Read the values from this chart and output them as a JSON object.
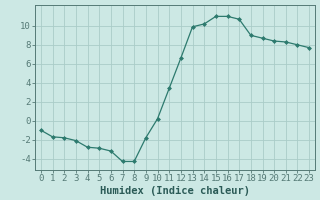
{
  "x": [
    0,
    1,
    2,
    3,
    4,
    5,
    6,
    7,
    8,
    9,
    10,
    11,
    12,
    13,
    14,
    15,
    16,
    17,
    18,
    19,
    20,
    21,
    22,
    23
  ],
  "y": [
    -1.0,
    -1.7,
    -1.8,
    -2.1,
    -2.8,
    -2.9,
    -3.2,
    -4.3,
    -4.3,
    -1.8,
    0.2,
    3.4,
    6.6,
    9.9,
    10.2,
    11.0,
    11.0,
    10.7,
    9.0,
    8.7,
    8.4,
    8.3,
    8.0,
    7.7
  ],
  "xlabel": "Humidex (Indice chaleur)",
  "ylabel": "",
  "xlim": [
    -0.5,
    23.5
  ],
  "ylim": [
    -5.2,
    12.2
  ],
  "yticks": [
    -4,
    -2,
    0,
    2,
    4,
    6,
    8,
    10
  ],
  "xticks": [
    0,
    1,
    2,
    3,
    4,
    5,
    6,
    7,
    8,
    9,
    10,
    11,
    12,
    13,
    14,
    15,
    16,
    17,
    18,
    19,
    20,
    21,
    22,
    23
  ],
  "line_color": "#2d7a6e",
  "marker": "D",
  "marker_size": 2.0,
  "bg_color": "#cce8e4",
  "grid_color": "#aaccc8",
  "axis_color": "#557a76",
  "label_color": "#2a5a56",
  "tick_fontsize": 6.5,
  "xlabel_fontsize": 7.5,
  "linewidth": 0.9
}
